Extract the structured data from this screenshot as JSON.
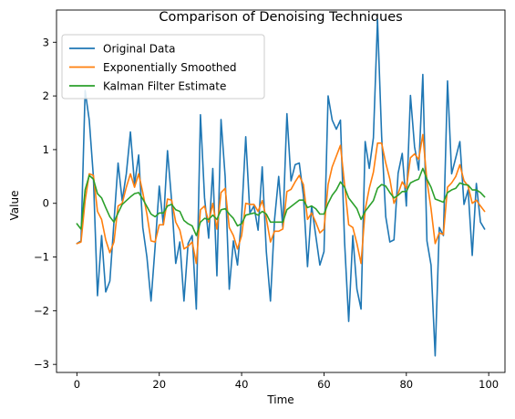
{
  "chart_data": {
    "type": "line",
    "title": "Comparison of Denoising Techniques",
    "xlabel": "Time",
    "ylabel": "Value",
    "xlim": [
      -4.95,
      103.95
    ],
    "ylim": [
      -3.15,
      3.6
    ],
    "xticks": [
      0,
      20,
      40,
      60,
      80,
      100
    ],
    "yticks": [
      -3,
      -2,
      -1,
      0,
      1,
      2,
      3
    ],
    "grid": false,
    "legend_position": "top-left",
    "x": [
      0,
      1,
      2,
      3,
      4,
      5,
      6,
      7,
      8,
      9,
      10,
      11,
      12,
      13,
      14,
      15,
      16,
      17,
      18,
      19,
      20,
      21,
      22,
      23,
      24,
      25,
      26,
      27,
      28,
      29,
      30,
      31,
      32,
      33,
      34,
      35,
      36,
      37,
      38,
      39,
      40,
      41,
      42,
      43,
      44,
      45,
      46,
      47,
      48,
      49,
      50,
      51,
      52,
      53,
      54,
      55,
      56,
      57,
      58,
      59,
      60,
      61,
      62,
      63,
      64,
      65,
      66,
      67,
      68,
      69,
      70,
      71,
      72,
      73,
      74,
      75,
      76,
      77,
      78,
      79,
      80,
      81,
      82,
      83,
      84,
      85,
      86,
      87,
      88,
      89,
      90,
      91,
      92,
      93,
      94,
      95,
      96,
      97,
      98,
      99
    ],
    "series": [
      {
        "name": "Original Data",
        "color": "#1f77b4",
        "values": [
          -0.75,
          -0.7,
          2.1,
          1.55,
          0.5,
          -1.72,
          -0.6,
          -1.65,
          -1.45,
          -0.35,
          0.75,
          0.05,
          0.55,
          1.33,
          0.35,
          0.9,
          -0.45,
          -1.0,
          -1.82,
          -0.8,
          0.32,
          -0.4,
          0.98,
          0.05,
          -1.12,
          -0.72,
          -1.82,
          -0.75,
          -0.6,
          -1.97,
          1.65,
          0.1,
          -0.65,
          0.65,
          -1.35,
          1.56,
          0.5,
          -1.6,
          -0.7,
          -1.15,
          -0.25,
          1.24,
          -0.18,
          -0.05,
          -0.5,
          0.68,
          -0.9,
          -1.82,
          -0.3,
          0.5,
          -0.45,
          1.67,
          0.42,
          0.72,
          0.75,
          0.15,
          -1.18,
          -0.05,
          -0.6,
          -1.15,
          -0.9,
          2.0,
          1.55,
          1.38,
          1.55,
          -0.72,
          -2.2,
          -0.6,
          -1.6,
          -1.97,
          1.15,
          0.65,
          1.22,
          3.42,
          1.25,
          -0.25,
          -0.72,
          -0.68,
          0.56,
          0.93,
          -0.05,
          2.01,
          1.05,
          0.62,
          2.4,
          -0.7,
          -1.15,
          -2.84,
          -0.45,
          -0.6,
          2.28,
          0.55,
          0.85,
          1.15,
          -0.02,
          0.25,
          -0.97,
          0.37,
          -0.35,
          -0.48
        ]
      },
      {
        "name": "Exponentially Smoothed",
        "color": "#ff7f0e",
        "values": [
          -0.75,
          -0.72,
          0.05,
          0.55,
          0.52,
          -0.15,
          -0.3,
          -0.68,
          -0.92,
          -0.72,
          -0.05,
          0.0,
          0.3,
          0.55,
          0.3,
          0.55,
          0.2,
          -0.2,
          -0.7,
          -0.72,
          -0.4,
          -0.4,
          0.08,
          0.06,
          -0.35,
          -0.5,
          -0.85,
          -0.8,
          -0.72,
          -1.12,
          -0.12,
          -0.05,
          -0.35,
          0.0,
          -0.48,
          0.2,
          0.28,
          -0.45,
          -0.6,
          -0.85,
          -0.6,
          0.0,
          -0.02,
          -0.02,
          -0.15,
          0.05,
          -0.28,
          -0.72,
          -0.52,
          -0.52,
          -0.48,
          0.22,
          0.26,
          0.4,
          0.52,
          0.35,
          -0.3,
          -0.18,
          -0.35,
          -0.55,
          -0.48,
          0.35,
          0.68,
          0.88,
          1.08,
          0.35,
          -0.4,
          -0.45,
          -0.75,
          -1.12,
          -0.12,
          0.28,
          0.58,
          1.12,
          1.12,
          0.75,
          0.45,
          0.0,
          0.18,
          0.4,
          0.28,
          0.85,
          0.92,
          0.82,
          1.28,
          0.42,
          -0.1,
          -0.75,
          -0.55,
          -0.58,
          0.3,
          0.38,
          0.5,
          0.72,
          0.42,
          0.32,
          0.0,
          0.06,
          -0.05,
          -0.15
        ]
      },
      {
        "name": "Kalman Filter Estimate",
        "color": "#2ca02c",
        "values": [
          -0.38,
          -0.48,
          0.25,
          0.52,
          0.45,
          0.18,
          0.1,
          -0.08,
          -0.25,
          -0.35,
          -0.18,
          -0.02,
          0.05,
          0.12,
          0.18,
          0.2,
          0.08,
          -0.06,
          -0.2,
          -0.25,
          -0.18,
          -0.18,
          -0.05,
          -0.02,
          -0.12,
          -0.15,
          -0.32,
          -0.38,
          -0.42,
          -0.6,
          -0.35,
          -0.28,
          -0.3,
          -0.22,
          -0.3,
          -0.12,
          -0.1,
          -0.2,
          -0.28,
          -0.42,
          -0.38,
          -0.22,
          -0.2,
          -0.18,
          -0.22,
          -0.15,
          -0.2,
          -0.35,
          -0.35,
          -0.35,
          -0.35,
          -0.12,
          -0.06,
          0.0,
          0.06,
          0.06,
          -0.08,
          -0.05,
          -0.1,
          -0.2,
          -0.2,
          0.0,
          0.15,
          0.25,
          0.4,
          0.3,
          0.1,
          0.0,
          -0.1,
          -0.3,
          -0.15,
          -0.05,
          0.05,
          0.28,
          0.35,
          0.32,
          0.2,
          0.1,
          0.15,
          0.22,
          0.22,
          0.38,
          0.42,
          0.45,
          0.65,
          0.45,
          0.3,
          0.08,
          0.05,
          0.02,
          0.2,
          0.25,
          0.28,
          0.38,
          0.35,
          0.34,
          0.25,
          0.25,
          0.2,
          0.12
        ]
      }
    ]
  }
}
